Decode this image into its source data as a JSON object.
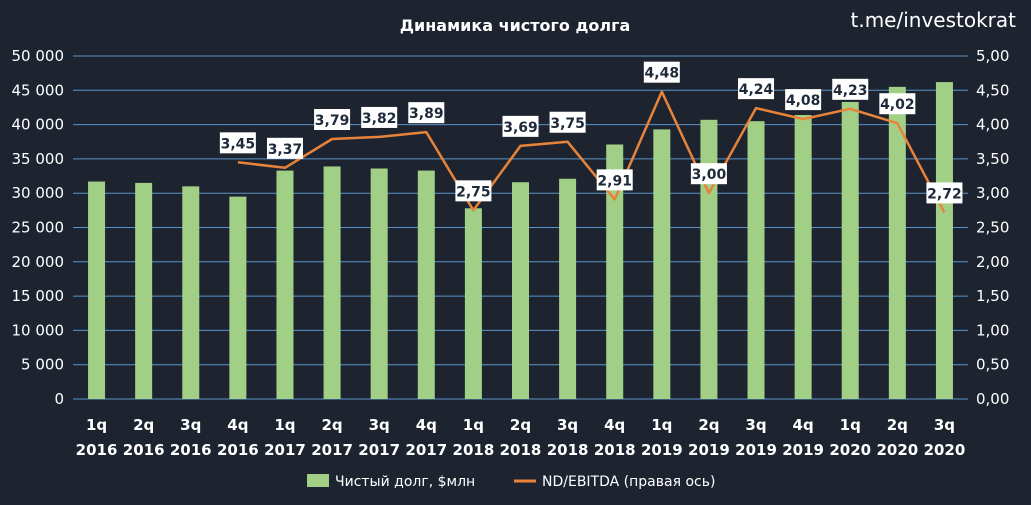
{
  "watermark": "t.me/investokrat",
  "chart_data": {
    "type": "bar",
    "title": "Динамика чистого долга",
    "categories": [
      [
        "1q",
        "2016"
      ],
      [
        "2q",
        "2016"
      ],
      [
        "3q",
        "2016"
      ],
      [
        "4q",
        "2016"
      ],
      [
        "1q",
        "2017"
      ],
      [
        "2q",
        "2017"
      ],
      [
        "3q",
        "2017"
      ],
      [
        "4q",
        "2017"
      ],
      [
        "1q",
        "2018"
      ],
      [
        "2q",
        "2018"
      ],
      [
        "3q",
        "2018"
      ],
      [
        "4q",
        "2018"
      ],
      [
        "1q",
        "2019"
      ],
      [
        "2q",
        "2019"
      ],
      [
        "3q",
        "2019"
      ],
      [
        "4q",
        "2019"
      ],
      [
        "1q",
        "2020"
      ],
      [
        "2q",
        "2020"
      ],
      [
        "3q",
        "2020"
      ]
    ],
    "series": [
      {
        "name": "Чистый долг, $млн",
        "type": "bar",
        "axis": "left",
        "color": "#a2cf86",
        "values": [
          31700,
          31500,
          31000,
          29500,
          33300,
          33900,
          33600,
          33300,
          27800,
          31600,
          32100,
          37100,
          39300,
          40700,
          40500,
          41400,
          43300,
          45500,
          46200
        ]
      },
      {
        "name": "ND/EBITDA (правая ось)",
        "type": "line",
        "axis": "right",
        "color": "#e8833a",
        "values": [
          null,
          null,
          null,
          3.45,
          3.37,
          3.79,
          3.82,
          3.89,
          2.75,
          3.69,
          3.75,
          2.91,
          4.48,
          3.0,
          4.24,
          4.08,
          4.23,
          4.02,
          2.72
        ],
        "labels": [
          null,
          null,
          null,
          "3,45",
          "3,37",
          "3,79",
          "3,82",
          "3,89",
          "2,75",
          "3,69",
          "3,75",
          "2,91",
          "4,48",
          "3,00",
          "4,24",
          "4,08",
          "4,23",
          "4,02",
          "2,72"
        ]
      }
    ],
    "y_left": {
      "ylim": [
        0,
        50000
      ],
      "ticks": [
        0,
        5000,
        10000,
        15000,
        20000,
        25000,
        30000,
        35000,
        40000,
        45000,
        50000
      ],
      "tick_labels": [
        "0",
        "5 000",
        "10 000",
        "15 000",
        "20 000",
        "25 000",
        "30 000",
        "35 000",
        "40 000",
        "45 000",
        "50 000"
      ]
    },
    "y_right": {
      "ylim": [
        0,
        5
      ],
      "ticks": [
        0,
        0.5,
        1,
        1.5,
        2,
        2.5,
        3,
        3.5,
        4,
        4.5,
        5
      ],
      "tick_labels": [
        "0,00",
        "0,50",
        "1,00",
        "1,50",
        "2,00",
        "2,50",
        "3,00",
        "3,50",
        "4,00",
        "4,50",
        "5,00"
      ]
    },
    "grid": true,
    "legend_position": "bottom",
    "colors": {
      "background": "#1d2430",
      "grid": "#5a93c9",
      "label_box": "#ffffff"
    }
  }
}
